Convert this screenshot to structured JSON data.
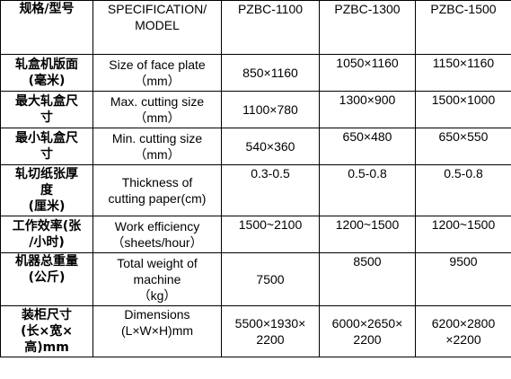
{
  "header": {
    "label": "规格/型号",
    "spec": "SPECIFICATION/\nMODEL",
    "models": [
      "PZBC-1100",
      "PZBC-1300",
      "PZBC-1500"
    ]
  },
  "rows": [
    {
      "label": "轧盒机版面\n(毫米)",
      "desc": "Size of face plate\n（mm）",
      "values": [
        "850×1160",
        "1050×1160",
        "1150×1160"
      ]
    },
    {
      "label": "最大轧盒尺\n寸",
      "desc": "Max. cutting size\n（mm）",
      "values": [
        "1100×780",
        "1300×900",
        "1500×1000"
      ]
    },
    {
      "label": "最小轧盒尺\n寸",
      "desc": "Min. cutting size\n（mm）",
      "values": [
        "540×360",
        "650×480",
        "650×550"
      ]
    },
    {
      "label": "轧切纸张厚\n度\n(厘米)",
      "desc": "Thickness of\ncutting paper(cm)",
      "values": [
        "0.3-0.5",
        "0.5-0.8",
        "0.5-0.8"
      ]
    },
    {
      "label": "工作效率(张\n/小时)",
      "desc": "Work efficiency\n（sheets/hour）",
      "values": [
        "1500~2100",
        "1200~1500",
        "1200~1500"
      ]
    },
    {
      "label": "机器总重量\n(公斤)",
      "desc": "Total weight of\nmachine\n（kg）",
      "values": [
        "7500",
        "8500",
        "9500"
      ]
    },
    {
      "label": "装柜尺寸\n(长×宽×\n高)mm",
      "desc": "Dimensions\n(L×W×H)mm",
      "values": [
        "5500×1930×\n2200",
        "6000×2650×\n2200",
        "6200×2800\n×2200"
      ]
    }
  ]
}
